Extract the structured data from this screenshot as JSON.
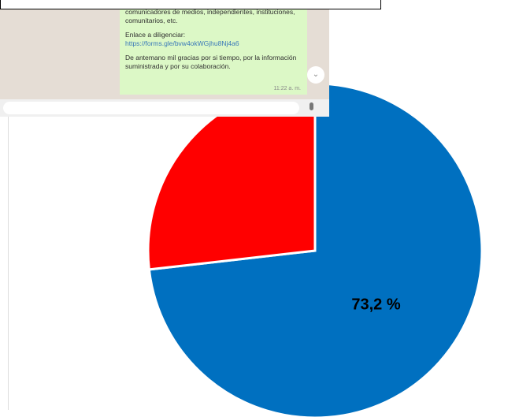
{
  "chart_data": {
    "type": "pie",
    "categories": [
      null,
      null
    ],
    "values": [
      73.2,
      26.8
    ],
    "value_labels": [
      "73,2 %",
      null
    ],
    "colors": [
      "#0070c0",
      "#ff0000"
    ]
  },
  "screenshot": {
    "message": [
      "comunicadores de medios, independientes, instituciones, comunitarios, etc.",
      "Enlace a diligenciar:",
      "https://forms.gle/bvw4okWGjhu8Nj4a6",
      "De antemano mil gracias por si tiempo, por la información suministrada y por su colaboración."
    ],
    "time": "11:22 a. m."
  }
}
